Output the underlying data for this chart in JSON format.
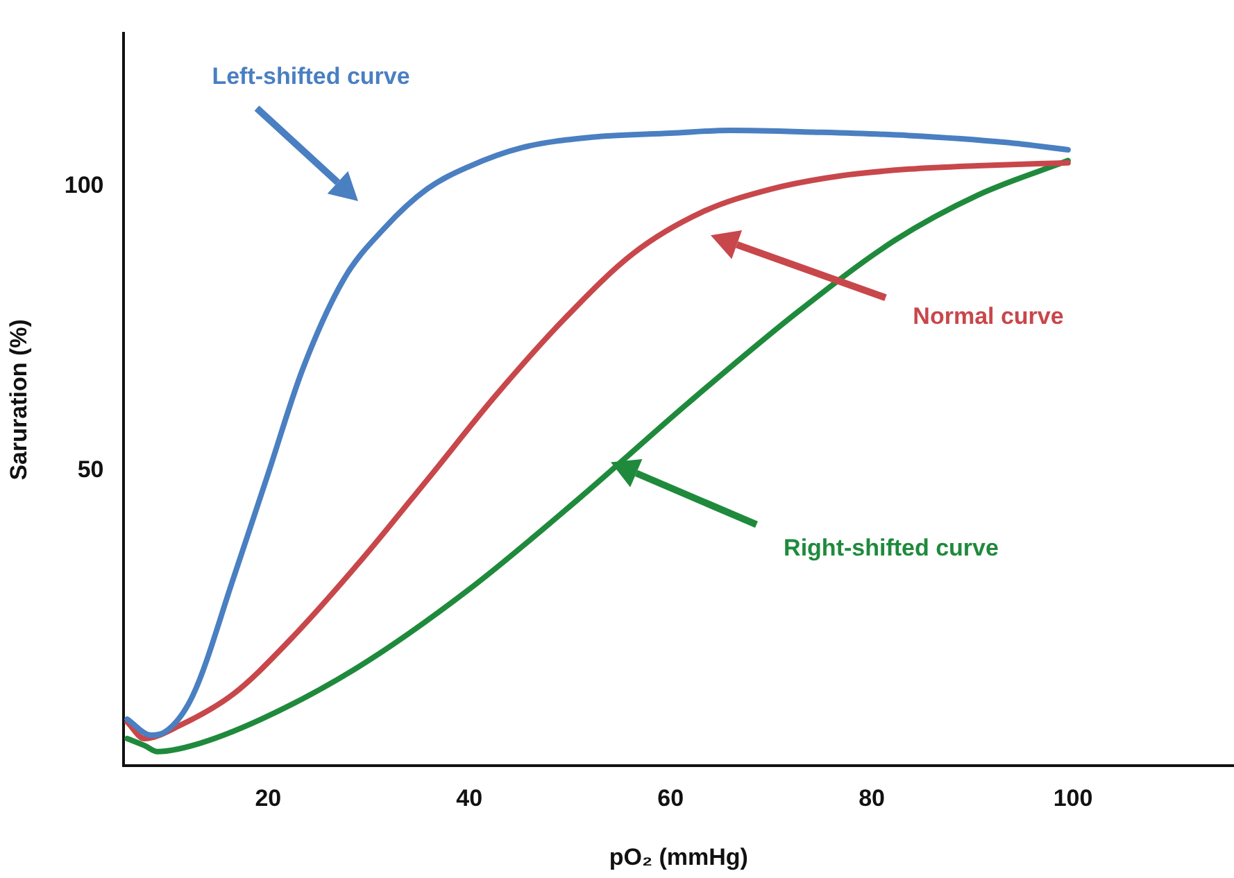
{
  "chart_data": {
    "type": "line",
    "xlabel": "pO₂ (mmHg)",
    "ylabel": "Saruration (%)",
    "xlim": [
      5.6,
      116
    ],
    "ylim": [
      -1.8,
      126.8
    ],
    "xticks": [
      20,
      40,
      60,
      80,
      100
    ],
    "yticks": [
      50,
      100
    ],
    "grid": false,
    "legend": false,
    "marker": "none",
    "line_style": "solid",
    "series": [
      {
        "name": "Left-shifted curve",
        "color": "#4a7fc1",
        "x": [
          6,
          8.4,
          9.7,
          12.5,
          16.6,
          20,
          23.4,
          27.5,
          31.6,
          35.8,
          39.9,
          45.3,
          52.2,
          60,
          65.9,
          74.1,
          83.7,
          93.3,
          99.5
        ],
        "values": [
          6.4,
          3.6,
          4.1,
          10.5,
          31.4,
          49.5,
          67.7,
          83.6,
          92.7,
          99.5,
          103.4,
          106.8,
          108.6,
          109.3,
          109.8,
          109.5,
          108.9,
          107.7,
          106.4
        ]
      },
      {
        "name": "Normal curve",
        "color": "#c8474b",
        "x": [
          6,
          7.7,
          11.1,
          16.6,
          22,
          28.9,
          35.8,
          42.6,
          49.5,
          56.3,
          63.2,
          70,
          76.8,
          83.7,
          90.5,
          99.5
        ],
        "values": [
          5.9,
          3,
          5.2,
          10.9,
          20,
          33.6,
          48.4,
          63.2,
          76.8,
          88.2,
          95.5,
          99.5,
          101.8,
          103,
          103.6,
          104.1
        ]
      },
      {
        "name": "Right-shifted curve",
        "color": "#1f8a3c",
        "x": [
          6,
          7.7,
          9,
          12.5,
          19.3,
          28.9,
          39.9,
          50.8,
          61.8,
          72.7,
          82.3,
          90.5,
          99.5
        ],
        "values": [
          3,
          1.8,
          0.7,
          1.8,
          6.4,
          15.5,
          29.1,
          45,
          62,
          78,
          90.5,
          98.4,
          104.5
        ]
      }
    ]
  }
}
